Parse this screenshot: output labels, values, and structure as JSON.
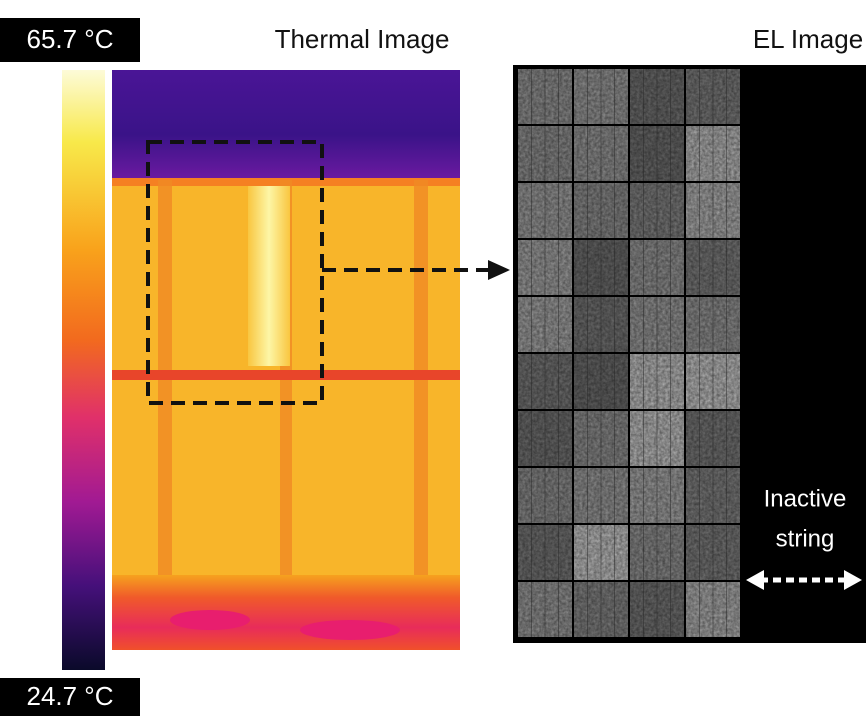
{
  "scale": {
    "max": "65.7 °C",
    "min": "24.7 °C"
  },
  "panels": {
    "thermal": {
      "title": "Thermal Image"
    },
    "el": {
      "title": "EL Image",
      "annotation": [
        "Inactive",
        "string"
      ]
    }
  }
}
